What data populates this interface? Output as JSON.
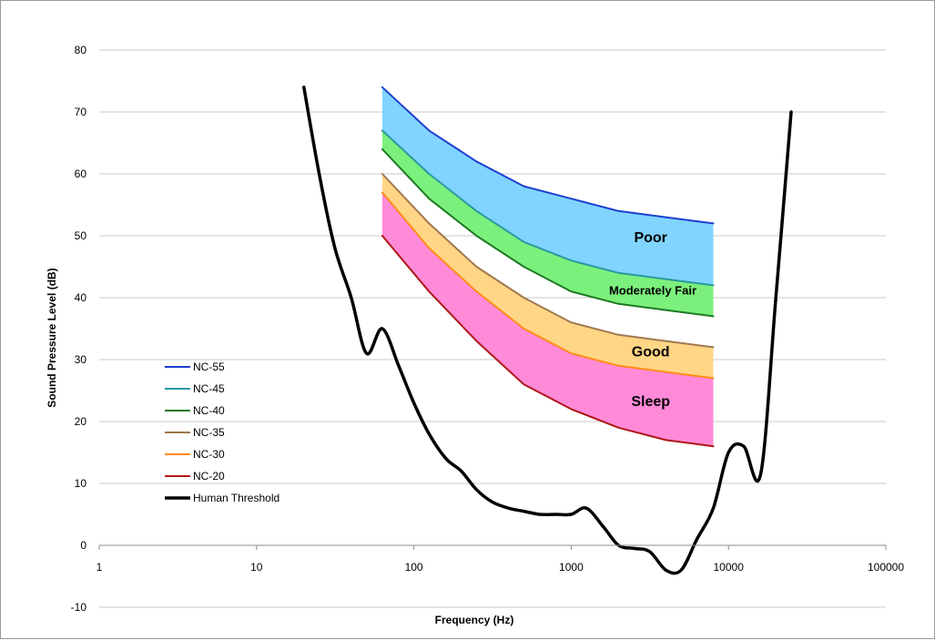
{
  "chart_data": {
    "type": "line",
    "xlabel": "Frequency (Hz)",
    "ylabel": "Sound Pressure Level (dB)",
    "xscale": "log",
    "xlim": [
      1,
      100000
    ],
    "ylim": [
      -10,
      80
    ],
    "x_ticks": [
      "1",
      "10",
      "100",
      "1000",
      "10000",
      "100000"
    ],
    "y_ticks": [
      "-10",
      "0",
      "10",
      "20",
      "30",
      "40",
      "50",
      "60",
      "70",
      "80"
    ],
    "grid": "horizontal",
    "legend_position": "left-bottom",
    "series": [
      {
        "name": "NC-55",
        "color": "#1f3fd0",
        "x": [
          63,
          125,
          250,
          500,
          1000,
          2000,
          4000,
          8000
        ],
        "y": [
          74,
          67,
          62,
          58,
          56,
          54,
          53,
          52
        ]
      },
      {
        "name": "NC-45",
        "color": "#2a9aa0",
        "x": [
          63,
          125,
          250,
          500,
          1000,
          2000,
          4000,
          8000
        ],
        "y": [
          67,
          60,
          54,
          49,
          46,
          44,
          43,
          42
        ]
      },
      {
        "name": "NC-40",
        "color": "#1e7a24",
        "x": [
          63,
          125,
          250,
          500,
          1000,
          2000,
          4000,
          8000
        ],
        "y": [
          64,
          56,
          50,
          45,
          41,
          39,
          38,
          37
        ]
      },
      {
        "name": "NC-35",
        "color": "#a07850",
        "x": [
          63,
          125,
          250,
          500,
          1000,
          2000,
          4000,
          8000
        ],
        "y": [
          60,
          52,
          45,
          40,
          36,
          34,
          33,
          32
        ]
      },
      {
        "name": "NC-30",
        "color": "#ff8c1a",
        "x": [
          63,
          125,
          250,
          500,
          1000,
          2000,
          4000,
          8000
        ],
        "y": [
          57,
          48,
          41,
          35,
          31,
          29,
          28,
          27
        ]
      },
      {
        "name": "NC-20",
        "color": "#b01818",
        "x": [
          63,
          125,
          250,
          500,
          1000,
          2000,
          4000,
          8000
        ],
        "y": [
          50,
          41,
          33,
          26,
          22,
          19,
          17,
          16
        ]
      },
      {
        "name": "Human Threshold",
        "color": "#000000",
        "x": [
          20,
          25,
          31.5,
          40,
          50,
          63,
          80,
          100,
          125,
          160,
          200,
          250,
          315,
          400,
          500,
          630,
          800,
          1000,
          1250,
          1600,
          2000,
          2500,
          3150,
          4000,
          5000,
          6300,
          8000,
          10000,
          12500,
          16000,
          20000,
          25000
        ],
        "y": [
          74,
          60,
          48,
          40,
          31,
          35,
          29,
          23,
          18,
          14,
          12,
          9,
          7,
          6,
          5.5,
          5,
          5,
          5,
          6,
          3,
          0,
          -0.5,
          -1,
          -4,
          -4,
          1,
          6,
          15,
          16,
          11.5,
          40,
          70
        ]
      }
    ],
    "bands": [
      {
        "upper": "NC-55",
        "lower": "NC-45",
        "color": "#80d4ff",
        "label": "Poor"
      },
      {
        "upper": "NC-45",
        "lower": "NC-40",
        "color": "#7cf07c",
        "label": "Moderately Fair"
      },
      {
        "upper": "NC-35",
        "lower": "NC-30",
        "color": "#ffd685",
        "label": "Good"
      },
      {
        "upper": "NC-30",
        "lower": "NC-20",
        "color": "#ff8ad8",
        "label": "Sleep"
      }
    ]
  }
}
